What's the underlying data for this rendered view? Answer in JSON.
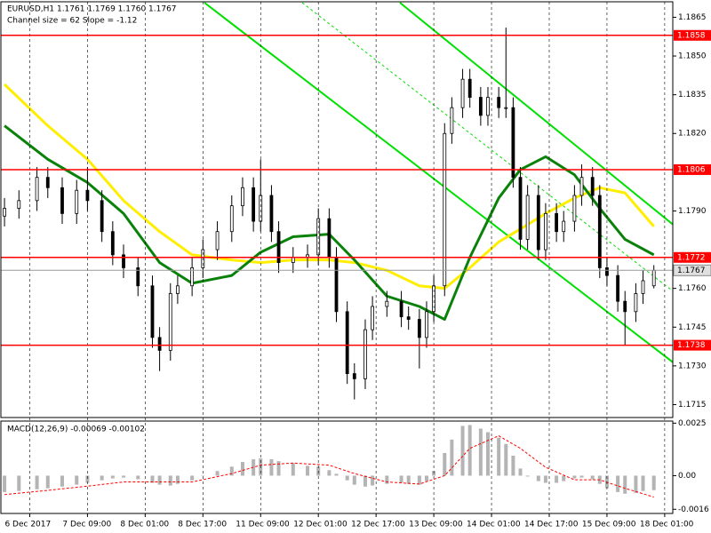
{
  "chart_data": [
    {
      "type": "candlestick",
      "title": "EURUSD,H1  1.1761 1.1769 1.1760 1.1767",
      "subtitle": "Channel size = 62 Slope = -1.12",
      "color": "#000000",
      "x": [
        0,
        4,
        9,
        12,
        16,
        20,
        23,
        27,
        30,
        33,
        37,
        41,
        43,
        46,
        48,
        52,
        55,
        59,
        63,
        66,
        69,
        71,
        74,
        76,
        80,
        84,
        87,
        90,
        92,
        95,
        97,
        100,
        102,
        106,
        110,
        112,
        115,
        117,
        119,
        122,
        124,
        127,
        129,
        132,
        134,
        137,
        139,
        141,
        143,
        145,
        148,
        150,
        153,
        155,
        158,
        160,
        163,
        165,
        167,
        170,
        172,
        175,
        177,
        180
      ],
      "open": [
        1.1788,
        1.1791,
        1.1794,
        1.1803,
        1.1799,
        1.1789,
        1.1798,
        1.1794,
        1.1782,
        1.1773,
        1.1768,
        1.1761,
        1.1741,
        1.1736,
        1.1758,
        1.1761,
        1.1768,
        1.1775,
        1.1782,
        1.1792,
        1.1799,
        1.1786,
        1.1796,
        1.1782,
        1.177,
        1.1772,
        1.1773,
        1.1787,
        1.1772,
        1.1751,
        1.1727,
        1.1725,
        1.1744,
        1.1753,
        1.1755,
        1.1749,
        1.1748,
        1.1741,
        1.1751,
        1.1761,
        1.182,
        1.183,
        1.1841,
        1.1834,
        1.1827,
        1.1834,
        1.183,
        1.183,
        1.1803,
        1.1779,
        1.1796,
        1.1775,
        1.1789,
        1.1782,
        1.1786,
        1.1796,
        1.1803,
        1.1796,
        1.1768,
        1.1765,
        1.1755,
        1.1751,
        1.1758,
        1.1761
      ],
      "high": [
        1.1795,
        1.1798,
        1.1807,
        1.1807,
        1.1803,
        1.1802,
        1.1807,
        1.1798,
        1.1786,
        1.1777,
        1.1772,
        1.1765,
        1.1745,
        1.1762,
        1.1765,
        1.1772,
        1.1779,
        1.1786,
        1.1796,
        1.1803,
        1.1803,
        1.181,
        1.18,
        1.1786,
        1.1776,
        1.1777,
        1.1791,
        1.1791,
        1.1776,
        1.1755,
        1.1731,
        1.1748,
        1.1757,
        1.1759,
        1.1759,
        1.1753,
        1.1752,
        1.1755,
        1.1765,
        1.1824,
        1.1834,
        1.1845,
        1.1845,
        1.1838,
        1.1838,
        1.1838,
        1.1861,
        1.1834,
        1.1807,
        1.18,
        1.18,
        1.1793,
        1.1793,
        1.179,
        1.18,
        1.1808,
        1.1807,
        1.18,
        1.1772,
        1.1769,
        1.1759,
        1.1762,
        1.1767,
        1.1769
      ],
      "low": [
        1.1784,
        1.1787,
        1.179,
        1.1795,
        1.1785,
        1.1785,
        1.179,
        1.1778,
        1.1769,
        1.1764,
        1.1757,
        1.1737,
        1.1728,
        1.1732,
        1.1754,
        1.1757,
        1.1764,
        1.1771,
        1.1778,
        1.1788,
        1.1782,
        1.1782,
        1.1778,
        1.1766,
        1.1766,
        1.1768,
        1.1769,
        1.1768,
        1.1747,
        1.1723,
        1.1717,
        1.1721,
        1.174,
        1.1749,
        1.1745,
        1.1744,
        1.1729,
        1.1737,
        1.1747,
        1.1757,
        1.1816,
        1.1826,
        1.183,
        1.1823,
        1.1823,
        1.1826,
        1.1826,
        1.1799,
        1.1775,
        1.1775,
        1.1771,
        1.1771,
        1.1778,
        1.1778,
        1.1782,
        1.1792,
        1.1792,
        1.1764,
        1.1761,
        1.1751,
        1.1738,
        1.1747,
        1.1754,
        1.176
      ],
      "close": [
        1.1791,
        1.1794,
        1.1803,
        1.1799,
        1.1789,
        1.1798,
        1.1794,
        1.1782,
        1.1773,
        1.1768,
        1.1761,
        1.1741,
        1.1736,
        1.1758,
        1.1761,
        1.1768,
        1.1775,
        1.1782,
        1.1792,
        1.1799,
        1.1786,
        1.1796,
        1.1782,
        1.177,
        1.1772,
        1.1773,
        1.1787,
        1.1772,
        1.1751,
        1.1727,
        1.1725,
        1.1744,
        1.1753,
        1.1755,
        1.1749,
        1.1748,
        1.1741,
        1.1751,
        1.1761,
        1.182,
        1.183,
        1.1841,
        1.1834,
        1.1827,
        1.1834,
        1.183,
        1.183,
        1.1803,
        1.1779,
        1.1796,
        1.1775,
        1.1789,
        1.1782,
        1.1786,
        1.1796,
        1.1803,
        1.1796,
        1.1768,
        1.1765,
        1.1755,
        1.1751,
        1.1758,
        1.1763,
        1.1767
      ],
      "series": [
        {
          "color": "#ffee00",
          "x": [
            0,
            12,
            23,
            33,
            43,
            52,
            63,
            71,
            80,
            90,
            97,
            106,
            115,
            122,
            129,
            137,
            143,
            150,
            158,
            165,
            172,
            180
          ],
          "values": [
            1.1839,
            1.1823,
            1.181,
            1.1794,
            1.1782,
            1.1773,
            1.1771,
            1.177,
            1.1771,
            1.1771,
            1.177,
            1.1767,
            1.1761,
            1.176,
            1.1768,
            1.1778,
            1.1783,
            1.1789,
            1.1795,
            1.1799,
            1.1797,
            1.1784
          ]
        },
        {
          "color": "#0a820a",
          "x": [
            0,
            12,
            23,
            33,
            43,
            52,
            63,
            71,
            80,
            90,
            97,
            106,
            115,
            122,
            129,
            137,
            143,
            150,
            158,
            165,
            172,
            180
          ],
          "values": [
            1.1823,
            1.181,
            1.1801,
            1.1789,
            1.177,
            1.1762,
            1.1765,
            1.1774,
            1.178,
            1.1781,
            1.1771,
            1.1757,
            1.1753,
            1.1748,
            1.1772,
            1.1795,
            1.1806,
            1.1811,
            1.1804,
            1.1791,
            1.1779,
            1.1773
          ]
        }
      ],
      "levels": [
        1.1858,
        1.1806,
        1.1772,
        1.1738
      ],
      "level_color": "#ff0000",
      "current": 1.1767,
      "xlim": [
        -1,
        185
      ],
      "ylim": [
        1.171,
        1.1871
      ],
      "yticks": [
        1.1865,
        {
          "value": 1.185,
          "label": "1.1850"
        },
        1.1835,
        {
          "value": 1.182,
          "label": "1.1820"
        },
        {
          "value": 1.179,
          "label": "1.1790"
        },
        {
          "value": 1.176,
          "label": "1.1760"
        },
        1.1745,
        {
          "value": 1.173,
          "label": "1.1730"
        },
        1.1715
      ],
      "xticks": [
        {
          "value": 7,
          "label": "6 Dec 2017"
        },
        {
          "value": 23,
          "label": "7 Dec 09:00"
        },
        {
          "value": 39,
          "label": "8 Dec 01:00"
        },
        {
          "value": 55,
          "label": "8 Dec 17:00"
        },
        {
          "value": 71,
          "label": "11 Dec 09:00"
        },
        {
          "value": 87,
          "label": "12 Dec 01:00"
        },
        {
          "value": 103,
          "label": "12 Dec 17:00"
        },
        {
          "value": 119,
          "label": "13 Dec 09:00"
        },
        {
          "value": 135,
          "label": "14 Dec 01:00"
        },
        {
          "value": 151,
          "label": "14 Dec 17:00"
        },
        {
          "value": 167,
          "label": "15 Dec 09:00"
        },
        {
          "value": 183,
          "label": "18 Dec 01:00"
        }
      ]
    },
    {
      "type": "macd",
      "title": "MACD(12,26,9) -0.00069 -0.00102",
      "color": "#b4b4b4",
      "x": [
        0,
        4,
        9,
        12,
        16,
        20,
        23,
        27,
        30,
        33,
        37,
        41,
        43,
        46,
        48,
        52,
        55,
        59,
        63,
        66,
        69,
        71,
        74,
        76,
        80,
        84,
        87,
        90,
        92,
        95,
        97,
        100,
        102,
        106,
        110,
        112,
        115,
        117,
        119,
        122,
        124,
        127,
        129,
        132,
        134,
        137,
        139,
        141,
        143,
        145,
        148,
        150,
        153,
        155,
        158,
        160,
        163,
        165,
        167,
        170,
        172,
        175,
        177,
        180
      ],
      "values": [
        -0.00078,
        -0.00073,
        -0.00065,
        -0.0006,
        -0.00052,
        -0.00043,
        -0.00034,
        -0.00022,
        -0.00013,
        -9e-05,
        -0.00017,
        -0.00034,
        -0.00043,
        -0.00047,
        -0.00039,
        -0.00022,
        2e-05,
        0.00022,
        0.00043,
        0.00065,
        0.00078,
        0.00082,
        0.00078,
        0.00069,
        0.0006,
        0.00047,
        0.00043,
        0.00026,
        9e-05,
        -0.00022,
        -0.00043,
        -0.00052,
        -0.00047,
        -0.00039,
        -0.00034,
        -0.00039,
        -0.00043,
        -0.00026,
        0.00022,
        0.00108,
        0.00172,
        0.00237,
        0.00241,
        0.00224,
        0.00207,
        0.00181,
        0.00151,
        0.00095,
        0.00034,
        -4e-05,
        -0.00026,
        -0.00034,
        -0.00034,
        -0.00026,
        -0.00013,
        -9e-05,
        -0.00017,
        -0.00039,
        -0.0006,
        -0.00078,
        -0.00086,
        -0.00082,
        -0.00073,
        -0.00069
      ],
      "signal": {
        "color": "#ff0000",
        "x": [
          0,
          12,
          23,
          33,
          43,
          52,
          63,
          71,
          80,
          90,
          97,
          106,
          115,
          122,
          129,
          137,
          143,
          150,
          158,
          165,
          172,
          180
        ],
        "values": [
          -0.0009,
          -0.0007,
          -0.0005,
          -0.0003,
          -0.0003,
          -0.0003,
          0.0001,
          0.0005,
          0.0006,
          0.0005,
          0.0001,
          -0.0003,
          -0.0004,
          0,
          0.0013,
          0.0019,
          0.0013,
          0.0004,
          -0.0002,
          -0.0002,
          -0.0006,
          -0.00102
        ]
      },
      "ylim": [
        -0.0018,
        0.0026
      ],
      "yticks": [
        0.0025,
        {
          "value": 0,
          "label": "0.00"
        },
        -0.0016
      ]
    }
  ]
}
